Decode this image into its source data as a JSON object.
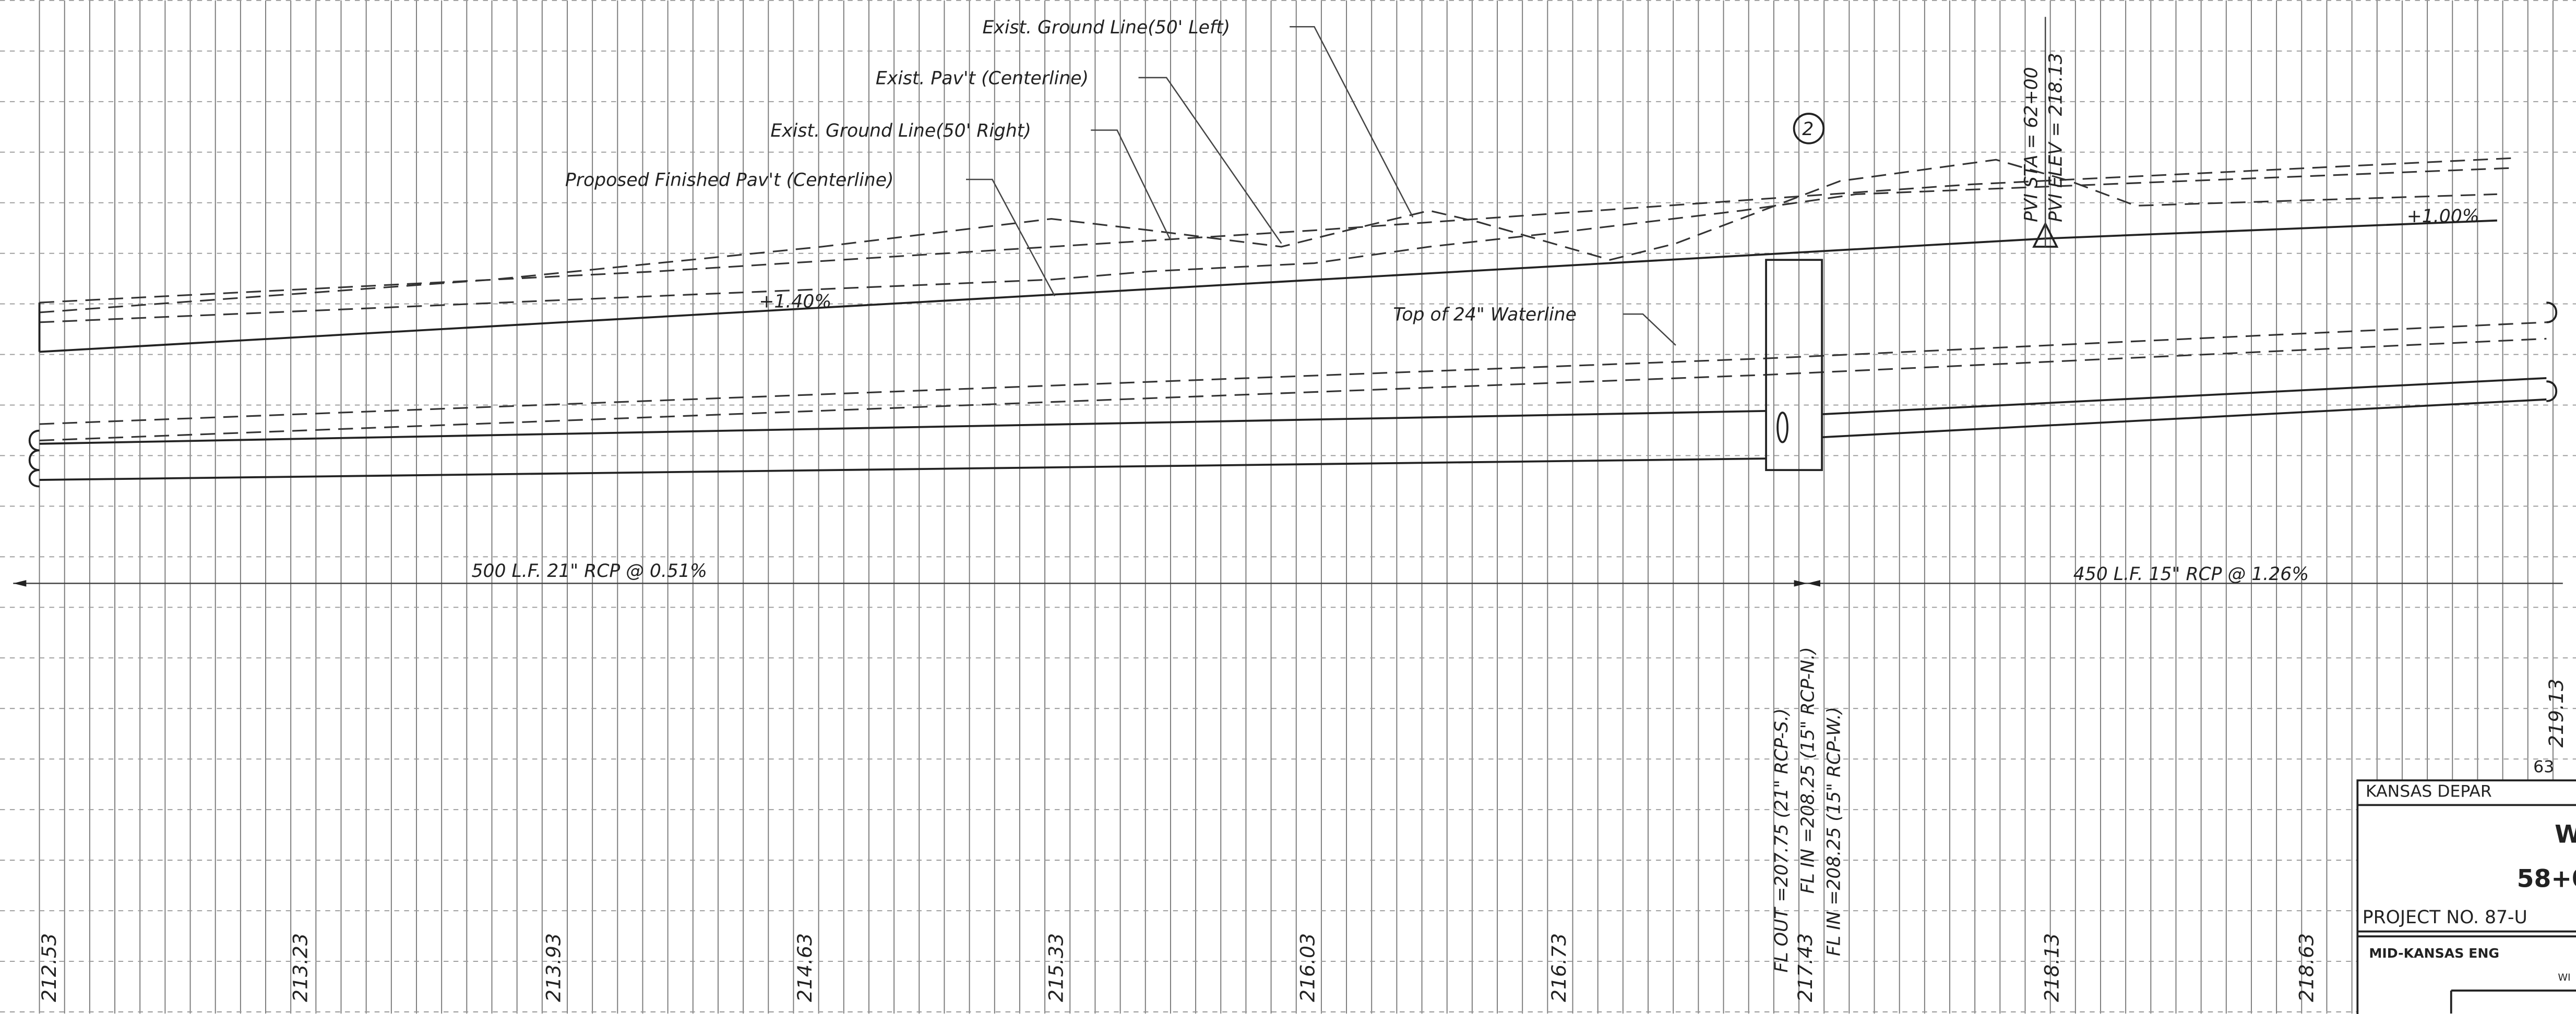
{
  "labels": {
    "ground_left": "Exist. Ground Line(50' Left)",
    "pavt_center": "Exist. Pav't (Centerline)",
    "ground_right": "Exist. Ground Line(50' Right)",
    "proposed": "Proposed Finished Pav't (Centerline)",
    "waterline": "Top of 24\" Waterline",
    "grade_left": "+1.40%",
    "grade_right": "+1.00%",
    "structure": "2",
    "pipe_left": "500 L.F. 21\" RCP @ 0.51%",
    "pipe_right": "450 L.F. 15\" RCP @ 1.26%",
    "fl_out": "FL OUT =207.75 (21\" RCP-S.)",
    "fl_in_n": "FL IN =208.25 (15\" RCP-N.)",
    "fl_in_w": "FL IN =208.25 (15\" RCP-W.)",
    "sheet_station": "63"
  },
  "pvi": {
    "station": "PVI STA   =  62+00",
    "elevation": "PVI ELEV  =  218.13"
  },
  "stations": [
    "212.53",
    "213.23",
    "213.93",
    "214.63",
    "215.33",
    "216.03",
    "216.73",
    "217.43",
    "218.13",
    "218.63",
    "219.13"
  ],
  "title_block": [
    "KANSAS DEPAR",
    "W",
    "58+0",
    "PROJECT NO. 87-U",
    "MID-KANSAS  ENG",
    "WI"
  ]
}
